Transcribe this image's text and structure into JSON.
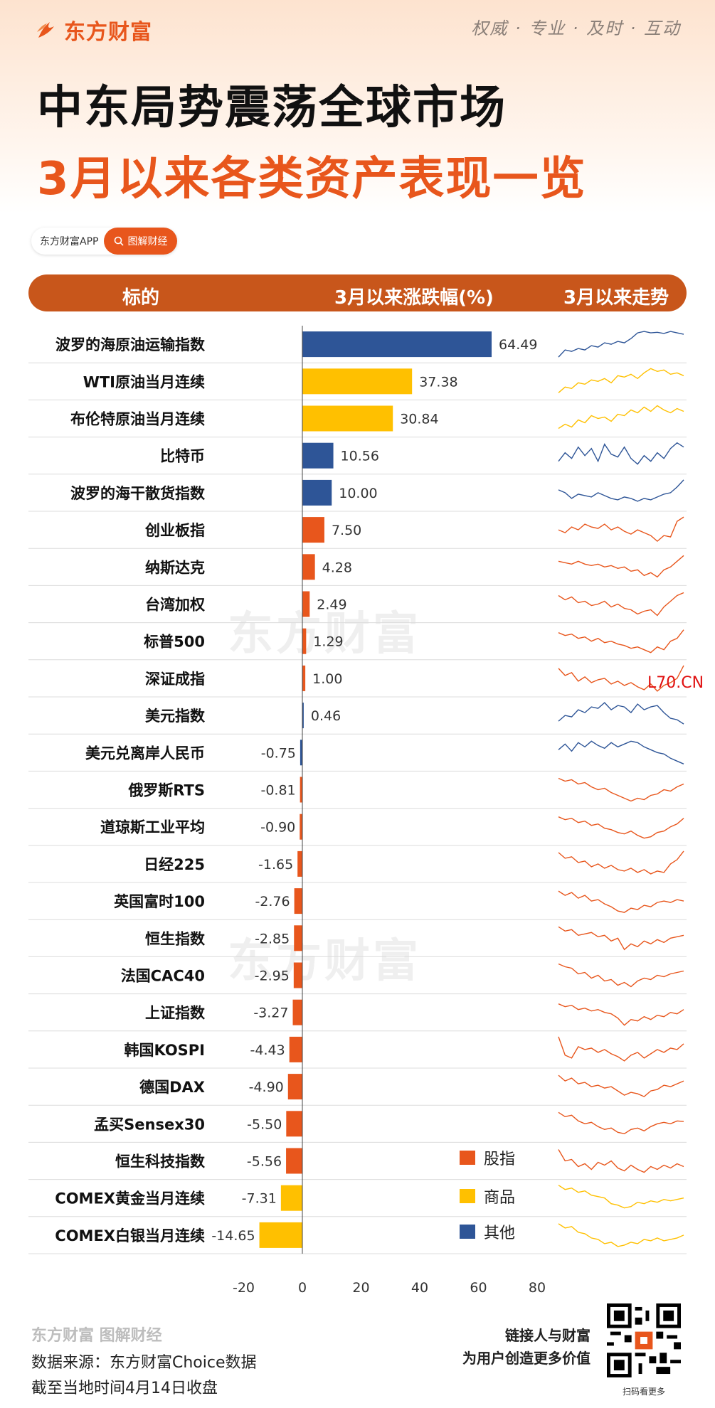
{
  "brand": "东方财富",
  "slogan": "权威 · 专业 · 及时 · 互动",
  "title_line1": "中东局势震荡全球市场",
  "title_line2": "3月以来各类资产表现一览",
  "app_pill": {
    "app_name": "东方财富APP",
    "button_label": "图解财经"
  },
  "table_header": {
    "col_name": "标的",
    "col_change": "3月以来涨跌幅(%)",
    "col_trend": "3月以来走势"
  },
  "watermark_text": "东方财富",
  "watermark_link": "L70.CN",
  "chart_data": {
    "type": "bar",
    "orientation": "horizontal",
    "x_range": [
      -20,
      80
    ],
    "x_ticks": [
      -20,
      0,
      20,
      40,
      60,
      80
    ],
    "categories": [
      "波罗的海原油运输指数",
      "WTI原油当月连续",
      "布伦特原油当月连续",
      "比特币",
      "波罗的海干散货指数",
      "创业板指",
      "纳斯达克",
      "台湾加权",
      "标普500",
      "深证成指",
      "美元指数",
      "美元兑离岸人民币",
      "俄罗斯RTS",
      "道琼斯工业平均",
      "日经225",
      "英国富时100",
      "恒生指数",
      "法国CAC40",
      "上证指数",
      "韩国KOSPI",
      "德国DAX",
      "孟买Sensex30",
      "恒生科技指数",
      "COMEX黄金当月连续",
      "COMEX白银当月连续"
    ],
    "values": [
      64.49,
      37.38,
      30.84,
      10.56,
      10.0,
      7.5,
      4.28,
      2.49,
      1.29,
      1.0,
      0.46,
      -0.75,
      -0.81,
      -0.9,
      -1.65,
      -2.76,
      -2.85,
      -2.95,
      -3.27,
      -4.43,
      -4.9,
      -5.5,
      -5.56,
      -7.31,
      -14.65
    ],
    "value_labels": [
      "64.49",
      "37.38",
      "30.84",
      "10.56",
      "10.00",
      "7.50",
      "4.28",
      "2.49",
      "1.29",
      "1.00",
      "0.46",
      "-0.75",
      "-0.81",
      "-0.90",
      "-1.65",
      "-2.76",
      "-2.85",
      "-2.95",
      "-3.27",
      "-4.43",
      "-4.90",
      "-5.50",
      "-5.56",
      "-7.31",
      "-14.65"
    ],
    "groups": [
      "其他",
      "商品",
      "商品",
      "其他",
      "其他",
      "股指",
      "股指",
      "股指",
      "股指",
      "股指",
      "其他",
      "其他",
      "股指",
      "股指",
      "股指",
      "股指",
      "股指",
      "股指",
      "股指",
      "股指",
      "股指",
      "股指",
      "股指",
      "商品",
      "商品"
    ],
    "legend": [
      {
        "name": "股指",
        "color": "#e8561c"
      },
      {
        "name": "商品",
        "color": "#ffc000"
      },
      {
        "name": "其他",
        "color": "#2e5597"
      }
    ],
    "legend_position": "bottom-right",
    "sparklines": [
      [
        0.05,
        0.3,
        0.25,
        0.35,
        0.3,
        0.45,
        0.4,
        0.55,
        0.5,
        0.6,
        0.55,
        0.7,
        0.9,
        0.95,
        0.9,
        0.92,
        0.88,
        0.95,
        0.9,
        0.85
      ],
      [
        0.1,
        0.3,
        0.25,
        0.45,
        0.4,
        0.55,
        0.5,
        0.6,
        0.45,
        0.7,
        0.65,
        0.75,
        0.6,
        0.8,
        0.95,
        0.85,
        0.9,
        0.75,
        0.8,
        0.7
      ],
      [
        0.15,
        0.3,
        0.2,
        0.45,
        0.35,
        0.6,
        0.5,
        0.55,
        0.4,
        0.65,
        0.6,
        0.8,
        0.7,
        0.9,
        0.75,
        0.95,
        0.8,
        0.7,
        0.85,
        0.75
      ],
      [
        0.3,
        0.6,
        0.4,
        0.8,
        0.5,
        0.75,
        0.3,
        0.9,
        0.55,
        0.45,
        0.8,
        0.4,
        0.2,
        0.5,
        0.3,
        0.6,
        0.4,
        0.75,
        0.95,
        0.8
      ],
      [
        0.6,
        0.5,
        0.3,
        0.45,
        0.4,
        0.35,
        0.5,
        0.4,
        0.3,
        0.25,
        0.35,
        0.3,
        0.2,
        0.3,
        0.25,
        0.35,
        0.45,
        0.5,
        0.7,
        0.95
      ],
      [
        0.5,
        0.4,
        0.6,
        0.5,
        0.7,
        0.6,
        0.55,
        0.7,
        0.5,
        0.6,
        0.45,
        0.35,
        0.5,
        0.4,
        0.3,
        0.1,
        0.3,
        0.25,
        0.8,
        0.95
      ],
      [
        0.7,
        0.65,
        0.6,
        0.7,
        0.6,
        0.55,
        0.6,
        0.5,
        0.55,
        0.45,
        0.5,
        0.35,
        0.4,
        0.2,
        0.3,
        0.15,
        0.4,
        0.5,
        0.7,
        0.9
      ],
      [
        0.8,
        0.65,
        0.75,
        0.55,
        0.6,
        0.45,
        0.5,
        0.6,
        0.4,
        0.5,
        0.35,
        0.3,
        0.15,
        0.25,
        0.3,
        0.1,
        0.4,
        0.6,
        0.8,
        0.9
      ],
      [
        0.8,
        0.7,
        0.75,
        0.6,
        0.65,
        0.5,
        0.6,
        0.45,
        0.5,
        0.4,
        0.35,
        0.25,
        0.3,
        0.2,
        0.1,
        0.3,
        0.2,
        0.5,
        0.6,
        0.9
      ],
      [
        0.85,
        0.6,
        0.7,
        0.4,
        0.55,
        0.35,
        0.45,
        0.5,
        0.3,
        0.4,
        0.25,
        0.35,
        0.2,
        0.1,
        0.3,
        0.05,
        0.25,
        0.35,
        0.5,
        0.95
      ],
      [
        0.3,
        0.5,
        0.45,
        0.7,
        0.6,
        0.8,
        0.75,
        0.95,
        0.7,
        0.85,
        0.8,
        0.6,
        0.9,
        0.7,
        0.8,
        0.85,
        0.6,
        0.4,
        0.35,
        0.2
      ],
      [
        0.6,
        0.8,
        0.55,
        0.85,
        0.7,
        0.9,
        0.75,
        0.65,
        0.85,
        0.7,
        0.8,
        0.9,
        0.85,
        0.7,
        0.6,
        0.5,
        0.45,
        0.3,
        0.2,
        0.1
      ],
      [
        0.9,
        0.8,
        0.85,
        0.7,
        0.75,
        0.6,
        0.5,
        0.55,
        0.4,
        0.3,
        0.2,
        0.1,
        0.2,
        0.15,
        0.3,
        0.35,
        0.5,
        0.45,
        0.6,
        0.7
      ],
      [
        0.85,
        0.75,
        0.8,
        0.65,
        0.7,
        0.55,
        0.6,
        0.45,
        0.4,
        0.3,
        0.25,
        0.35,
        0.2,
        0.1,
        0.15,
        0.3,
        0.35,
        0.5,
        0.6,
        0.8
      ],
      [
        0.9,
        0.7,
        0.75,
        0.55,
        0.6,
        0.4,
        0.5,
        0.35,
        0.45,
        0.3,
        0.25,
        0.35,
        0.2,
        0.3,
        0.15,
        0.25,
        0.2,
        0.5,
        0.65,
        0.95
      ],
      [
        0.85,
        0.7,
        0.8,
        0.6,
        0.7,
        0.5,
        0.55,
        0.4,
        0.3,
        0.15,
        0.1,
        0.25,
        0.2,
        0.35,
        0.3,
        0.45,
        0.5,
        0.45,
        0.55,
        0.5
      ],
      [
        0.9,
        0.75,
        0.8,
        0.6,
        0.65,
        0.7,
        0.55,
        0.6,
        0.4,
        0.5,
        0.1,
        0.3,
        0.2,
        0.4,
        0.3,
        0.45,
        0.35,
        0.5,
        0.55,
        0.6
      ],
      [
        0.9,
        0.8,
        0.75,
        0.55,
        0.6,
        0.4,
        0.5,
        0.3,
        0.35,
        0.15,
        0.25,
        0.1,
        0.3,
        0.4,
        0.35,
        0.5,
        0.45,
        0.55,
        0.6,
        0.65
      ],
      [
        0.8,
        0.7,
        0.75,
        0.6,
        0.65,
        0.55,
        0.6,
        0.5,
        0.45,
        0.3,
        0.05,
        0.25,
        0.2,
        0.35,
        0.25,
        0.4,
        0.35,
        0.5,
        0.45,
        0.6
      ],
      [
        0.95,
        0.3,
        0.2,
        0.6,
        0.5,
        0.55,
        0.4,
        0.5,
        0.35,
        0.25,
        0.1,
        0.3,
        0.4,
        0.2,
        0.35,
        0.5,
        0.4,
        0.55,
        0.5,
        0.7
      ],
      [
        0.9,
        0.7,
        0.8,
        0.6,
        0.65,
        0.5,
        0.55,
        0.45,
        0.5,
        0.35,
        0.2,
        0.3,
        0.25,
        0.15,
        0.35,
        0.4,
        0.55,
        0.5,
        0.6,
        0.7
      ],
      [
        0.9,
        0.75,
        0.8,
        0.6,
        0.5,
        0.55,
        0.4,
        0.3,
        0.35,
        0.2,
        0.15,
        0.3,
        0.35,
        0.25,
        0.4,
        0.5,
        0.55,
        0.5,
        0.6,
        0.58
      ],
      [
        0.9,
        0.5,
        0.55,
        0.3,
        0.4,
        0.2,
        0.45,
        0.35,
        0.5,
        0.25,
        0.15,
        0.35,
        0.2,
        0.1,
        0.3,
        0.2,
        0.35,
        0.25,
        0.4,
        0.3
      ],
      [
        0.95,
        0.8,
        0.85,
        0.7,
        0.75,
        0.6,
        0.55,
        0.5,
        0.3,
        0.25,
        0.15,
        0.2,
        0.35,
        0.3,
        0.4,
        0.35,
        0.45,
        0.4,
        0.45,
        0.5
      ],
      [
        0.9,
        0.75,
        0.8,
        0.6,
        0.55,
        0.4,
        0.35,
        0.2,
        0.25,
        0.1,
        0.15,
        0.25,
        0.2,
        0.35,
        0.3,
        0.4,
        0.3,
        0.35,
        0.4,
        0.5
      ]
    ]
  },
  "legend_labels": {
    "index": "股指",
    "commodity": "商品",
    "other": "其他"
  },
  "footer": {
    "brand": "东方财富 图解财经",
    "source": "数据来源：东方财富Choice数据",
    "cutoff": "截至当地时间4月14日收盘",
    "slogan_line1": "链接人与财富",
    "slogan_line2": "为用户创造更多价值",
    "qr_caption": "扫码看更多"
  }
}
